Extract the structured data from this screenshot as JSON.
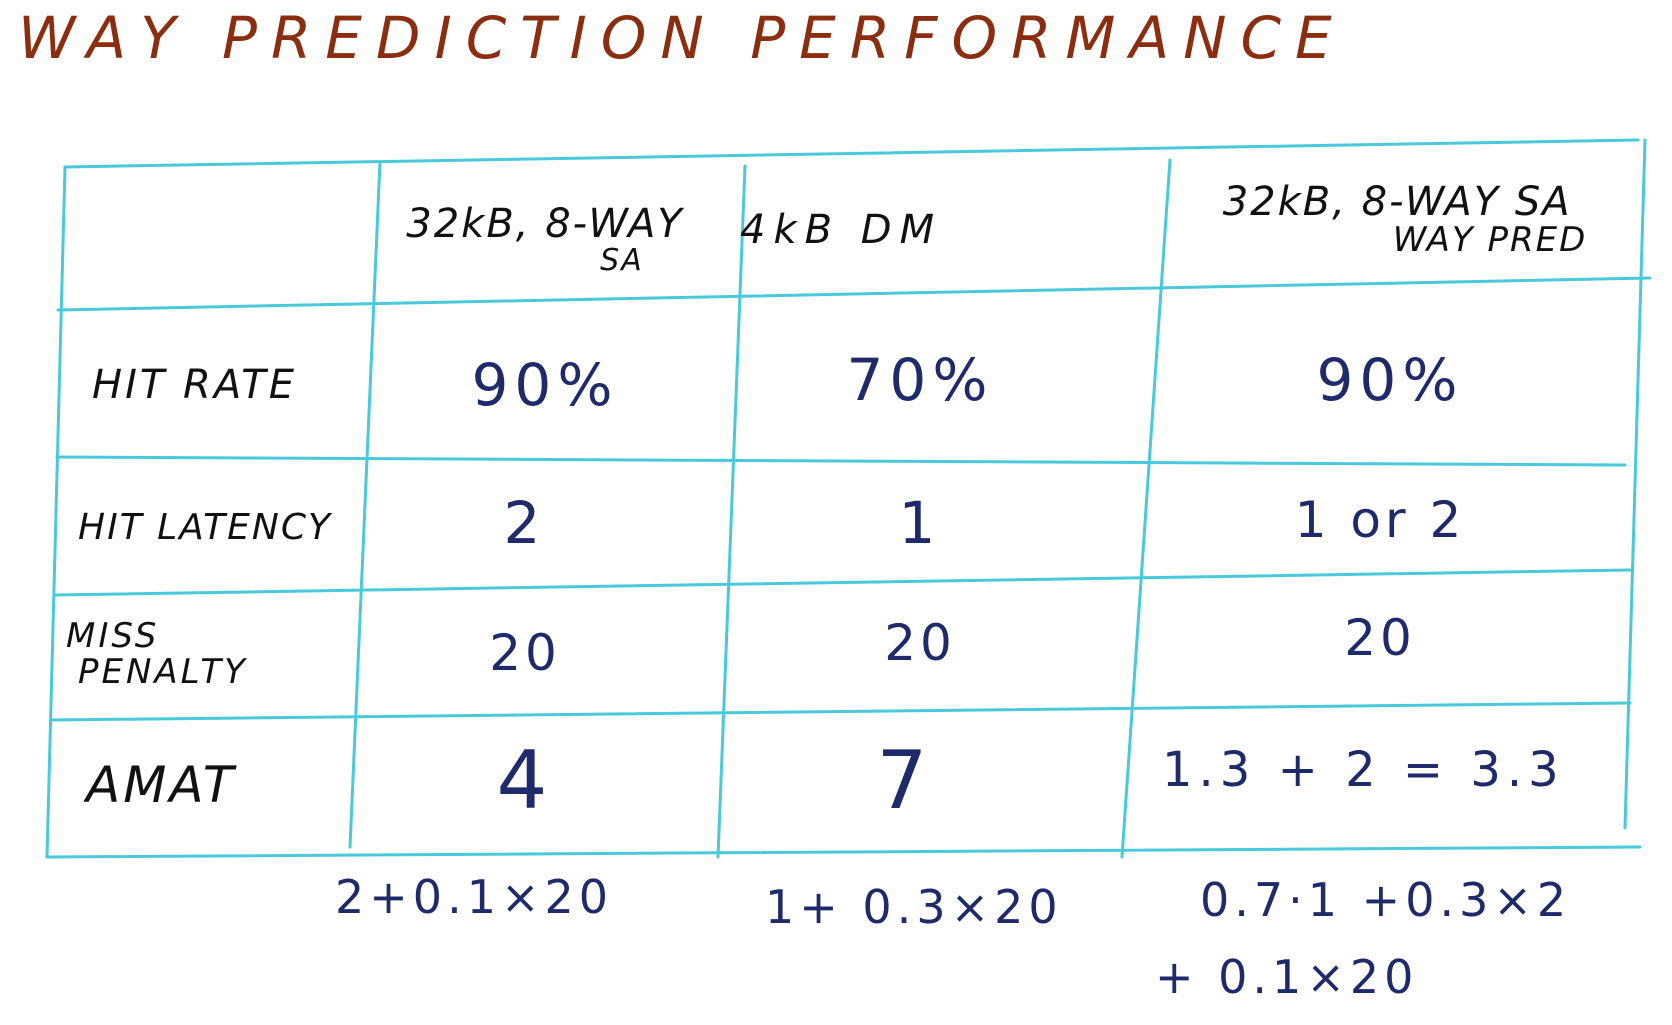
{
  "title": "WAY PREDICTION PERFORMANCE",
  "colors": {
    "title": "#8b2e0f",
    "grid": "#49c9d9",
    "header_ink": "#111111",
    "value_ink": "#1f2a6b"
  },
  "table": {
    "columns": [
      {
        "line1": "32kB, 8-WAY",
        "line2": "SA"
      },
      {
        "line1": "4kB DM",
        "line2": ""
      },
      {
        "line1": "32kB, 8-WAY SA",
        "line2": "WAY PRED"
      }
    ],
    "rows": [
      {
        "label": "HIT RATE",
        "values": [
          "90%",
          "70%",
          "90%"
        ]
      },
      {
        "label": "HIT LATENCY",
        "values": [
          "2",
          "1",
          "1 or 2"
        ]
      },
      {
        "label_line1": "MISS",
        "label_line2": "PENALTY",
        "values": [
          "20",
          "20",
          "20"
        ]
      },
      {
        "label": "AMAT",
        "values": [
          "4",
          "7",
          "1.3 + 2 = 3.3"
        ]
      }
    ]
  },
  "notes": {
    "col1": "2+0.1×20",
    "col2": "1+ 0.3×20",
    "col3_line1": "0.7·1 +0.3×2",
    "col3_line2": "+ 0.1×20"
  }
}
